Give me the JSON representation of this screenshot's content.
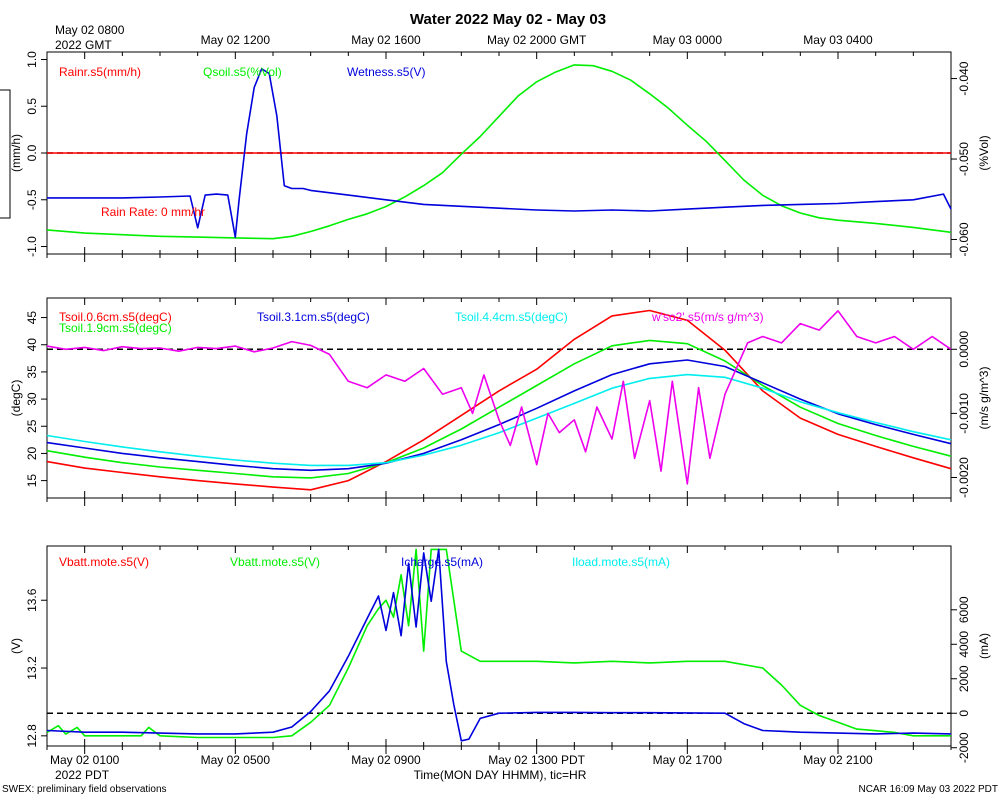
{
  "title": "Water 2022 May 02 - May 03",
  "top_axis": {
    "first_label_line1": "May 02 0800",
    "first_label_line2": "2022 GMT",
    "ticks": [
      "May 02 1200",
      "May 02 1600",
      "May 02 2000 GMT",
      "May 03 0000",
      "May 03 0400"
    ]
  },
  "bottom_axis": {
    "ticks": [
      "May 02 0100",
      "May 02 0500",
      "May 02 0900",
      "May 02 1300 PDT",
      "May 02 1700",
      "May 02 2100"
    ],
    "year_label": "2022 PDT",
    "xlabel": "Time(MON DAY HHMM), tic=HR"
  },
  "footer": {
    "left": "SWEX: preliminary field observations",
    "right": "NCAR 16:09 May 03 2022 PDT"
  },
  "chart_data": [
    {
      "type": "line",
      "panel": "top",
      "x_unit": "hours since May 02 0000 PDT",
      "xlim": [
        0,
        24
      ],
      "left_axis": {
        "label": "(mm/h)",
        "range": [
          -1.08,
          1.08
        ],
        "ticks": [
          "1.0",
          "0.5",
          "0.0",
          "-0.5",
          "-1.0"
        ],
        "tick_values": [
          1.0,
          0.5,
          0.0,
          -0.5,
          -1.0
        ]
      },
      "right_axis": {
        "label": "(%Vol)",
        "range": [
          -0.0618,
          -0.0367
        ],
        "ticks": [
          "-0.040",
          "-0.050",
          "-0.060"
        ],
        "tick_values": [
          -0.04,
          -0.05,
          -0.06
        ]
      },
      "reference_line": {
        "axis": "left",
        "value": 0.0
      },
      "annotations": [
        "Rain Rate: 0 mm/hr"
      ],
      "series": [
        {
          "name": "Rainr.s5(mm/h)",
          "color": "#ff0000",
          "axis": "left",
          "x": [
            0,
            24
          ],
          "y": [
            0,
            0
          ]
        },
        {
          "name": "Qsoil.s5(%Vol)",
          "color": "#00ee00",
          "axis": "right",
          "x": [
            0,
            1,
            2,
            3,
            4,
            5,
            6,
            6.5,
            7,
            7.5,
            8,
            8.5,
            9,
            9.5,
            10,
            10.5,
            11,
            11.5,
            12,
            12.5,
            13,
            13.5,
            14,
            14.5,
            15,
            15.5,
            16,
            16.5,
            17,
            17.5,
            18,
            18.5,
            19,
            19.5,
            20,
            20.5,
            21,
            22,
            23,
            24
          ],
          "y": [
            -0.0588,
            -0.0592,
            -0.0594,
            -0.0596,
            -0.0597,
            -0.0598,
            -0.0599,
            -0.0596,
            -0.059,
            -0.0583,
            -0.0575,
            -0.0568,
            -0.0559,
            -0.0547,
            -0.0533,
            -0.0517,
            -0.0494,
            -0.0472,
            -0.0447,
            -0.0422,
            -0.0404,
            -0.0392,
            -0.0383,
            -0.0384,
            -0.0391,
            -0.0402,
            -0.0419,
            -0.0437,
            -0.0458,
            -0.0478,
            -0.0502,
            -0.0526,
            -0.0545,
            -0.0558,
            -0.0567,
            -0.0573,
            -0.0576,
            -0.058,
            -0.0585,
            -0.0591
          ]
        },
        {
          "name": "Wetness.s5(V)",
          "color": "#0000dd",
          "axis": "left",
          "x": [
            0,
            1,
            2,
            3,
            3.8,
            4.0,
            4.2,
            4.5,
            4.8,
            5.0,
            5.1,
            5.3,
            5.5,
            5.7,
            5.9,
            6.1,
            6.3,
            6.5,
            6.8,
            7,
            8,
            9,
            10,
            11,
            12,
            13,
            14,
            15,
            16,
            17,
            18,
            19,
            20,
            21,
            22,
            23,
            23.8,
            24
          ],
          "y": [
            -0.48,
            -0.48,
            -0.48,
            -0.47,
            -0.46,
            -0.8,
            -0.45,
            -0.44,
            -0.45,
            -0.9,
            -0.5,
            0.2,
            0.7,
            0.9,
            0.85,
            0.4,
            -0.35,
            -0.38,
            -0.38,
            -0.4,
            -0.45,
            -0.5,
            -0.55,
            -0.57,
            -0.59,
            -0.61,
            -0.62,
            -0.61,
            -0.62,
            -0.6,
            -0.58,
            -0.56,
            -0.55,
            -0.54,
            -0.52,
            -0.5,
            -0.44,
            -0.6
          ]
        }
      ]
    },
    {
      "type": "line",
      "panel": "middle",
      "x_unit": "hours since May 02 0000 PDT",
      "xlim": [
        0,
        24
      ],
      "left_axis": {
        "label": "(degC)",
        "range": [
          11.8,
          48.6
        ],
        "ticks": [
          "45",
          "40",
          "35",
          "30",
          "25",
          "20",
          "15"
        ],
        "tick_values": [
          45,
          40,
          35,
          30,
          25,
          20,
          15
        ]
      },
      "right_axis": {
        "label": "(m/s g/m^3)",
        "range": [
          -0.00232,
          0.0008
        ],
        "ticks": [
          "0.0000",
          "-0.0010",
          "-0.0020"
        ],
        "tick_values": [
          0,
          -0.001,
          -0.002
        ]
      },
      "reference_line": {
        "axis": "right",
        "value": 0.0
      },
      "series": [
        {
          "name": "Tsoil.0.6cm.s5(degC)",
          "color": "#ff0000",
          "axis": "left",
          "x": [
            0,
            1,
            2,
            3,
            4,
            5,
            6,
            7,
            8,
            9,
            10,
            11,
            12,
            13,
            14,
            15,
            16,
            17,
            18,
            19,
            20,
            21,
            22,
            23,
            24
          ],
          "y": [
            18.5,
            17.3,
            16.5,
            15.7,
            15,
            14.4,
            13.8,
            13.3,
            15,
            18.5,
            22.5,
            27,
            31.5,
            35.5,
            41,
            45.3,
            46.3,
            44.5,
            39,
            31.5,
            26.5,
            23.5,
            21.3,
            19.2,
            17.2
          ]
        },
        {
          "name": "Tsoil.1.9cm.s5(degC)",
          "color": "#00ee00",
          "axis": "left",
          "x": [
            0,
            1,
            2,
            3,
            4,
            5,
            6,
            7,
            8,
            9,
            10,
            11,
            12,
            13,
            14,
            15,
            16,
            17,
            18,
            19,
            20,
            21,
            22,
            23,
            24
          ],
          "y": [
            20.5,
            19.3,
            18.3,
            17.5,
            16.9,
            16.3,
            15.7,
            15.5,
            16.3,
            18.3,
            21,
            24.5,
            28.5,
            32.5,
            36.5,
            39.8,
            40.8,
            40.2,
            37,
            32.5,
            28.5,
            25.5,
            23.3,
            21.3,
            19.5
          ]
        },
        {
          "name": "Tsoil.3.1cm.s5(degC)",
          "color": "#0000dd",
          "axis": "left",
          "x": [
            0,
            1,
            2,
            3,
            4,
            5,
            6,
            7,
            8,
            9,
            10,
            11,
            12,
            13,
            14,
            15,
            16,
            17,
            18,
            19,
            20,
            21,
            22,
            23,
            24
          ],
          "y": [
            22,
            21,
            20,
            19.2,
            18.5,
            17.8,
            17.2,
            16.9,
            17.2,
            18.2,
            20,
            22.5,
            25.3,
            28.3,
            31.5,
            34.5,
            36.5,
            37.2,
            36,
            33,
            30,
            27.3,
            25.3,
            23.5,
            21.8
          ]
        },
        {
          "name": "Tsoil.4.4cm.s5(degC)",
          "color": "#00eeee",
          "axis": "left",
          "x": [
            0,
            1,
            2,
            3,
            4,
            5,
            6,
            7,
            8,
            9,
            10,
            11,
            12,
            13,
            14,
            15,
            16,
            17,
            18,
            19,
            20,
            21,
            22,
            23,
            24
          ],
          "y": [
            23.3,
            22.2,
            21.2,
            20.3,
            19.5,
            18.8,
            18.2,
            17.8,
            17.8,
            18.3,
            19.7,
            21.5,
            23.8,
            26.5,
            29.2,
            32,
            33.8,
            34.5,
            34,
            32,
            29.5,
            27.5,
            25.7,
            24,
            22.5
          ]
        },
        {
          "name": "w'so2'.s5(m/s g/m^3)",
          "color": "#ee00ee",
          "axis": "right",
          "x": [
            0,
            0.5,
            1,
            1.5,
            2,
            2.5,
            3,
            3.5,
            4,
            4.5,
            5,
            5.5,
            6,
            6.5,
            7,
            7.5,
            8,
            8.5,
            9,
            9.5,
            10,
            10.5,
            11,
            11.3,
            11.6,
            12,
            12.3,
            12.6,
            13,
            13.3,
            13.6,
            14,
            14.3,
            14.6,
            15,
            15.3,
            15.6,
            16,
            16.3,
            16.6,
            17,
            17.3,
            17.6,
            18,
            18.3,
            18.6,
            19,
            19.5,
            20,
            20.5,
            21,
            21.5,
            22,
            22.5,
            23,
            23.5,
            24
          ],
          "y": [
            5e-05,
            0.0,
            3e-05,
            -2e-05,
            4e-05,
            1e-05,
            2e-05,
            -3e-05,
            3e-05,
            1e-05,
            5e-05,
            -4e-05,
            2e-05,
            0.00012,
            6e-05,
            -8e-05,
            -0.0005,
            -0.0006,
            -0.0004,
            -0.0005,
            -0.0003,
            -0.0007,
            -0.0006,
            -0.001,
            -0.0004,
            -0.0011,
            -0.0015,
            -0.0009,
            -0.0018,
            -0.001,
            -0.0013,
            -0.0011,
            -0.0016,
            -0.0009,
            -0.0014,
            -0.0005,
            -0.0017,
            -0.0008,
            -0.0019,
            -0.0005,
            -0.0021,
            -0.0006,
            -0.0017,
            -0.0007,
            -0.0003,
            0.0001,
            0.0002,
            0.0001,
            0.0004,
            0.0003,
            0.0006,
            0.0002,
            0.0001,
            0.0002,
            0.0,
            0.0002,
            0.0
          ]
        }
      ]
    },
    {
      "type": "line",
      "panel": "bottom",
      "x_unit": "hours since May 02 0000 PDT",
      "xlim": [
        0,
        24
      ],
      "left_axis": {
        "label": "(V)",
        "range": [
          12.74,
          13.92
        ],
        "ticks": [
          "13.6",
          "13.2",
          "12.8"
        ],
        "tick_values": [
          13.6,
          13.2,
          12.8
        ]
      },
      "right_axis": {
        "label": "(mA)",
        "range": [
          -1900,
          9700
        ],
        "ticks": [
          "6000",
          "4000",
          "2000",
          "0",
          "-2000"
        ],
        "tick_values": [
          6000,
          4000,
          2000,
          0,
          -2000
        ]
      },
      "reference_line": {
        "axis": "right",
        "value": 0
      },
      "series": [
        {
          "name": "Vbatt.mote.s5(V)",
          "color": "#ff0000",
          "axis": "left",
          "x": [],
          "y": []
        },
        {
          "name": "Vbatt.mote.s5(V)",
          "color": "#00ee00",
          "axis": "left",
          "x": [
            0,
            0.3,
            0.5,
            0.8,
            1.0,
            2,
            2.5,
            2.7,
            3,
            4,
            5,
            6,
            6.5,
            7,
            7.5,
            8,
            8.5,
            8.8,
            9,
            9.2,
            9.4,
            9.6,
            9.8,
            10,
            10.2,
            10.4,
            10.6,
            11,
            11.5,
            12,
            13,
            14,
            15,
            16,
            17,
            18,
            19,
            19.5,
            20,
            20.5,
            21,
            21.5,
            22,
            22.5,
            23,
            24
          ],
          "y": [
            12.82,
            12.86,
            12.81,
            12.85,
            12.8,
            12.8,
            12.8,
            12.85,
            12.8,
            12.79,
            12.79,
            12.79,
            12.8,
            12.88,
            12.98,
            13.2,
            13.45,
            13.55,
            13.6,
            13.5,
            13.75,
            13.45,
            13.9,
            13.3,
            13.9,
            13.9,
            13.9,
            13.3,
            13.24,
            13.24,
            13.24,
            13.23,
            13.24,
            13.23,
            13.24,
            13.24,
            13.2,
            13.1,
            12.98,
            12.92,
            12.88,
            12.84,
            12.83,
            12.82,
            12.8,
            12.8
          ]
        },
        {
          "name": "Icharge.s5(mA)",
          "color": "#0000dd",
          "axis": "right",
          "x": [
            0,
            1,
            2,
            3,
            4,
            5,
            6,
            6.5,
            7,
            7.5,
            8,
            8.5,
            8.8,
            9,
            9.2,
            9.4,
            9.6,
            9.8,
            10,
            10.2,
            10.4,
            10.6,
            10.8,
            11,
            11.2,
            11.5,
            12,
            13,
            14,
            15,
            16,
            17,
            18,
            18.5,
            19,
            19.5,
            20,
            21,
            22,
            23,
            24
          ],
          "y": [
            -1000,
            -1100,
            -1100,
            -1150,
            -1200,
            -1200,
            -1100,
            -800,
            100,
            1300,
            3300,
            5500,
            6800,
            4800,
            7000,
            4500,
            8700,
            5000,
            9300,
            6500,
            9500,
            3000,
            500,
            -1600,
            -1500,
            -300,
            0,
            50,
            50,
            30,
            30,
            20,
            0,
            -600,
            -1000,
            -1050,
            -1100,
            -1150,
            -1200,
            -1150,
            -1200
          ]
        },
        {
          "name": "Iload.mote.s5(mA)",
          "color": "#00eeee",
          "axis": "right",
          "x": [],
          "y": []
        }
      ]
    }
  ]
}
